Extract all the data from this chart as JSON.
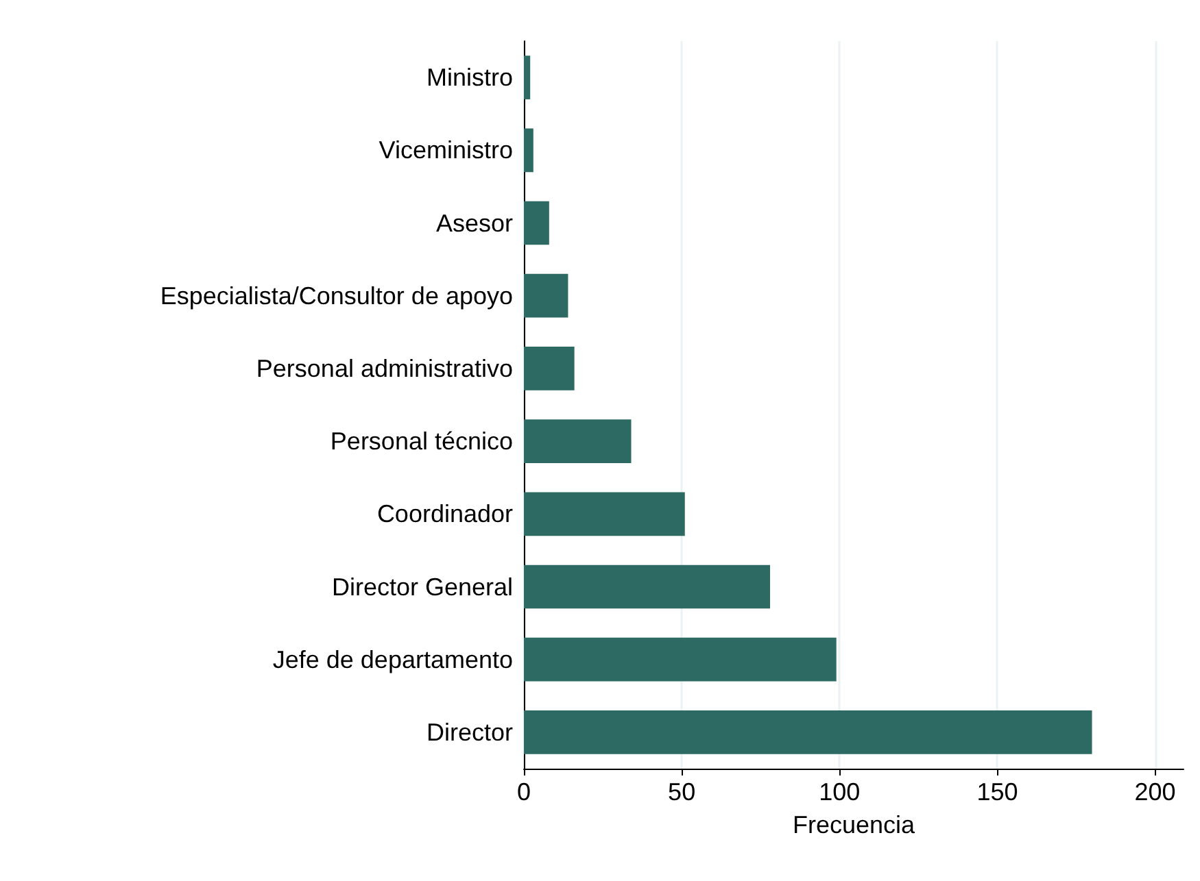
{
  "chart_data": {
    "type": "bar",
    "orientation": "horizontal",
    "xlabel": "Frecuencia",
    "categories": [
      "Ministro",
      "Viceministro",
      "Asesor",
      "Especialista/Consultor de apoyo",
      "Personal administrativo",
      "Personal técnico",
      "Coordinador",
      "Director General",
      "Jefe de departamento",
      "Director"
    ],
    "values": [
      2,
      3,
      8,
      14,
      16,
      34,
      51,
      78,
      99,
      180
    ],
    "color": "#2d6a63",
    "xlim": [
      0,
      209
    ],
    "xticks": [
      0,
      50,
      100,
      150,
      200
    ],
    "grid": "x"
  }
}
